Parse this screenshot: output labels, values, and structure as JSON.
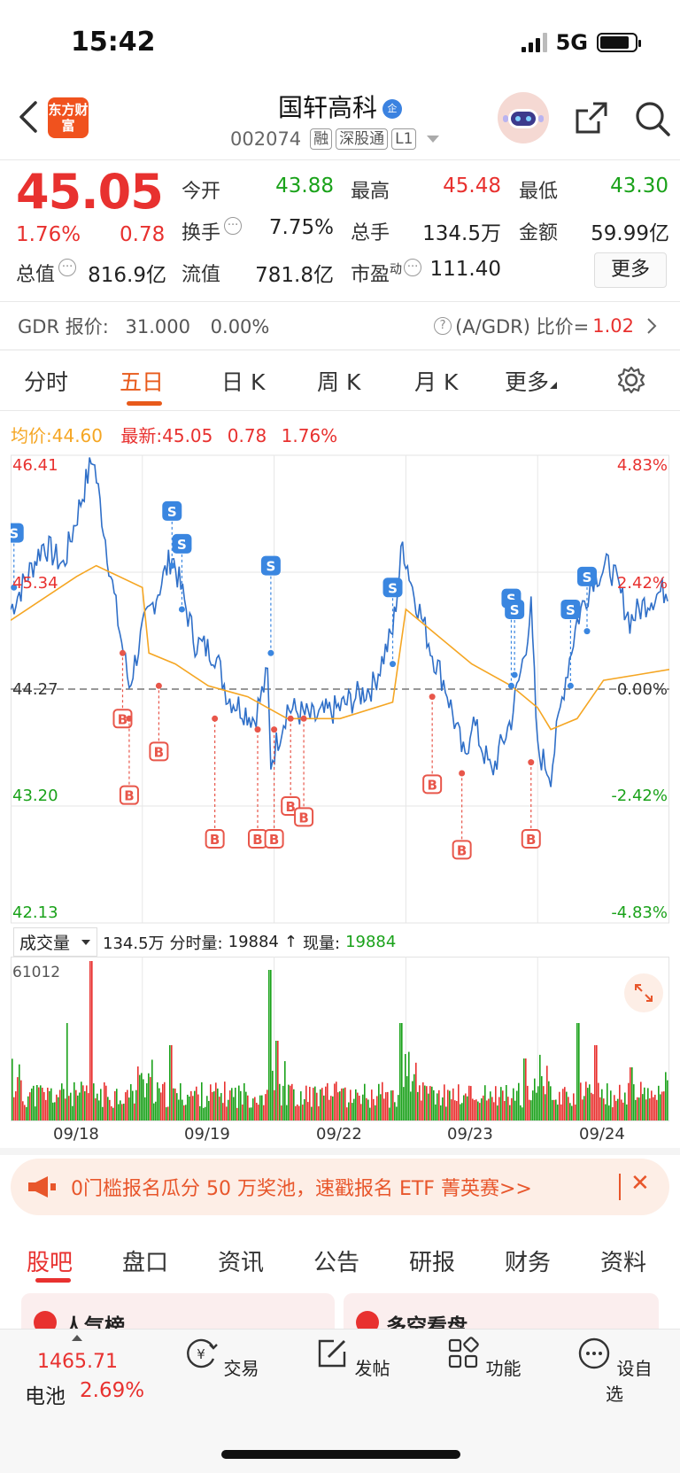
{
  "status": {
    "time": "15:42",
    "network": "5G"
  },
  "header": {
    "logo_text": "东方财富",
    "stock_name": "国轩高科",
    "name_badge": "企",
    "code": "002074",
    "tags": [
      "融",
      "深股通",
      "L1"
    ]
  },
  "quote": {
    "price": "45.05",
    "change_pct": "1.76%",
    "change_val": "0.78",
    "open_label": "今开",
    "open": "43.88",
    "high_label": "最高",
    "high": "45.48",
    "low_label": "最低",
    "low": "43.30",
    "turnover_label": "换手",
    "turnover": "7.75%",
    "volume_label": "总手",
    "volume": "134.5万",
    "amount_label": "金额",
    "amount": "59.99亿",
    "mktcap_label": "总值",
    "mktcap": "816.9亿",
    "float_label": "流值",
    "float": "781.8亿",
    "pe_label": "市盈",
    "pe_sup": "动",
    "pe": "111.40",
    "more_button": "更多"
  },
  "gdr": {
    "label": "GDR 报价:",
    "price": "31.000",
    "pct": "0.00%",
    "ratio_label": "(A/GDR) 比价=",
    "ratio": "1.02"
  },
  "chart_tabs": [
    "分时",
    "五日",
    "日 K",
    "周 K",
    "月 K",
    "更多"
  ],
  "chart_header": {
    "avg_label": "均价:",
    "avg": "44.60",
    "latest_label": "最新:",
    "latest": "45.05",
    "chg": "0.78",
    "pct": "1.76%"
  },
  "chart_data": {
    "type": "line",
    "title": "五日分时",
    "y_left_ticks": [
      "46.41",
      "45.34",
      "44.27",
      "43.20",
      "42.13"
    ],
    "y_right_ticks": [
      "4.83%",
      "2.42%",
      "0.00%",
      "-2.42%",
      "-4.83%"
    ],
    "ylim": [
      42.13,
      46.41
    ],
    "baseline": 44.27,
    "x_dates": [
      "09/18",
      "09/19",
      "09/22",
      "09/23",
      "09/24"
    ],
    "series": [
      {
        "name": "price",
        "color": "#2f6fc8"
      },
      {
        "name": "均价",
        "color": "#f5a623"
      }
    ]
  },
  "volume": {
    "select_label": "成交量",
    "total": "134.5万",
    "tick_label": "分时量:",
    "tick": "19884",
    "now_label": "现量:",
    "now": "19884",
    "max": "61012"
  },
  "promo": {
    "text": "0门槛报名瓜分 50 万奖池，速戳报名 ETF 菁英赛>>"
  },
  "bottom_tabs": [
    "股吧",
    "盘口",
    "资讯",
    "公告",
    "研报",
    "财务",
    "资料"
  ],
  "peek": {
    "left": "人气榜",
    "right": "多空看盘"
  },
  "toolbar": {
    "index_value": "1465.71",
    "index_name": "电池",
    "index_pct": "2.69%",
    "items": [
      "交易",
      "发帖",
      "功能",
      "设自选"
    ]
  },
  "colors": {
    "up": "#e8312f",
    "down": "#1aa21a",
    "accent": "#e85a1b",
    "price_line": "#2f6fc8",
    "avg_line": "#f5a623"
  }
}
